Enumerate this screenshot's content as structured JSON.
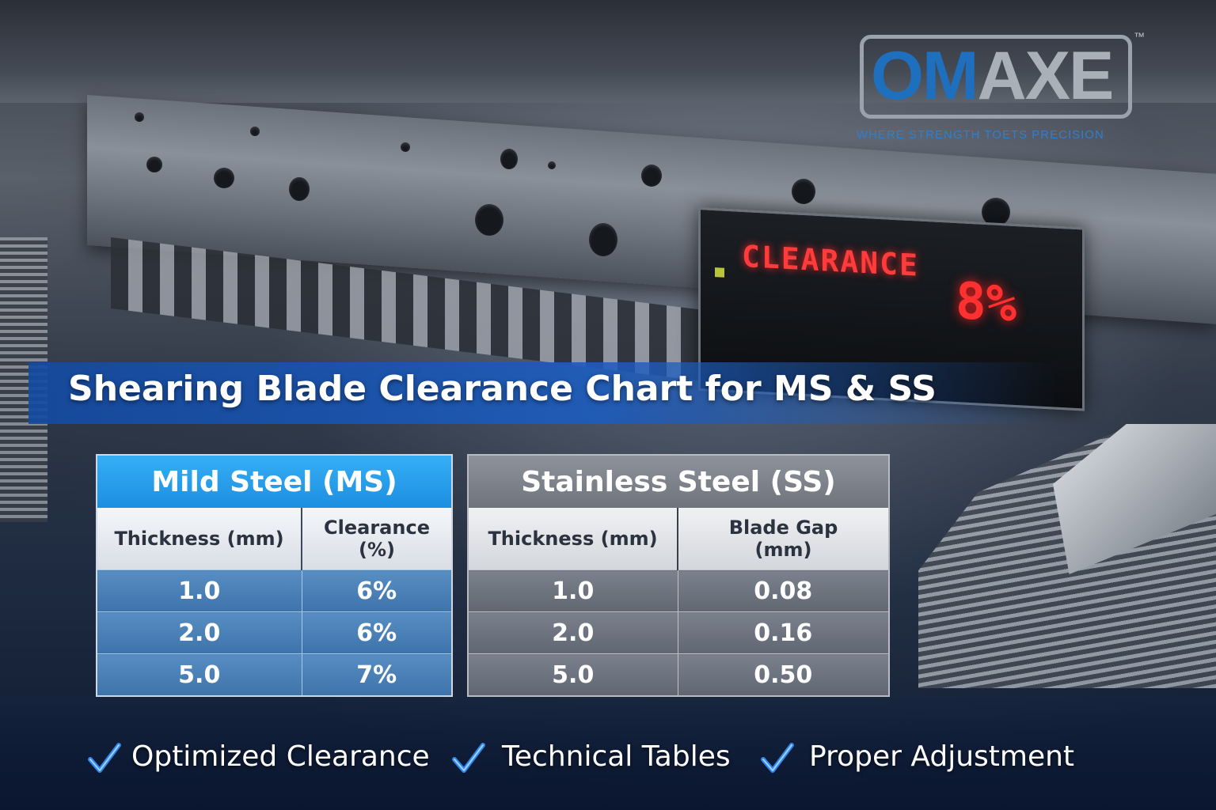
{
  "brand": {
    "name_part1": "OM",
    "name_part2": "AXE",
    "trademark": "™",
    "tagline": "WHERE STRENGTH TOETS PRECISION"
  },
  "display": {
    "label": "CLEARANCE",
    "value": "8%",
    "led_color": "#ff3030"
  },
  "title": "Shearing Blade Clearance Chart for MS & SS",
  "tables": {
    "ms": {
      "heading": "Mild Steel (MS)",
      "col1": "Thickness (mm)",
      "col2_line1": "Clearance",
      "col2_line2": "(%)",
      "rows": [
        {
          "thickness": "1.0",
          "value": "6%"
        },
        {
          "thickness": "2.0",
          "value": "6%"
        },
        {
          "thickness": "5.0",
          "value": "7%"
        }
      ],
      "accent": "#1c8fe0"
    },
    "ss": {
      "heading": "Stainless Steel (SS)",
      "col1": "Thickness (mm)",
      "col2_line1": "Blade Gap",
      "col2_line2": "(mm)",
      "rows": [
        {
          "thickness": "1.0",
          "value": "0.08"
        },
        {
          "thickness": "2.0",
          "value": "0.16"
        },
        {
          "thickness": "5.0",
          "value": "0.50"
        }
      ],
      "accent": "#6f747c"
    }
  },
  "features": [
    {
      "label": "Optimized Clearance",
      "icon": "check-icon"
    },
    {
      "label": "Technical Tables",
      "icon": "check-icon"
    },
    {
      "label": "Proper Adjustment",
      "icon": "check-icon"
    }
  ]
}
